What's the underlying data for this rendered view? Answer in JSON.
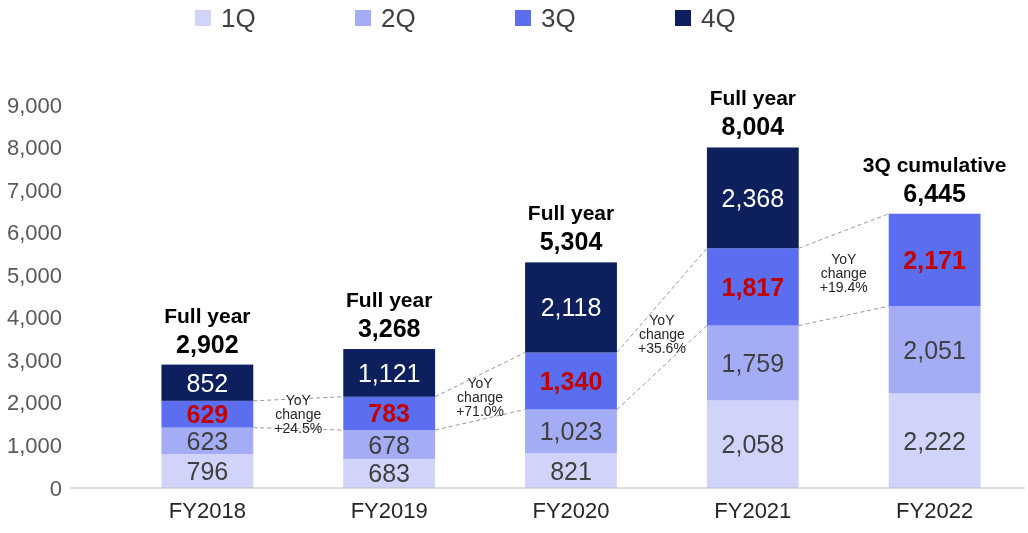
{
  "chart_data": {
    "type": "bar",
    "stacked": true,
    "categories": [
      "FY2018",
      "FY2019",
      "FY2020",
      "FY2021",
      "FY2022"
    ],
    "series": [
      {
        "name": "1Q",
        "color": "#d0d4fa",
        "values": [
          796,
          683,
          821,
          2058,
          2222
        ],
        "value_labels": [
          "796",
          "683",
          "821",
          "2,058",
          "2,222"
        ]
      },
      {
        "name": "2Q",
        "color": "#a3acf5",
        "values": [
          623,
          678,
          1023,
          1759,
          2051
        ],
        "value_labels": [
          "623",
          "678",
          "1,023",
          "1,759",
          "2,051"
        ]
      },
      {
        "name": "3Q",
        "color": "#5c6ef0",
        "values": [
          629,
          783,
          1340,
          1817,
          2171
        ],
        "value_labels": [
          "629",
          "783",
          "1,340",
          "1,817",
          "2,171"
        ]
      },
      {
        "name": "4Q",
        "color": "#0d1f5c",
        "values": [
          852,
          1121,
          2118,
          2368,
          null
        ],
        "value_labels": [
          "852",
          "1,121",
          "2,118",
          "2,368",
          null
        ]
      }
    ],
    "ylim": [
      0,
      9000
    ],
    "yticks": [
      {
        "value": 0,
        "label": "0"
      },
      {
        "value": 1000,
        "label": "1,000"
      },
      {
        "value": 2000,
        "label": "2,000"
      },
      {
        "value": 3000,
        "label": "3,000"
      },
      {
        "value": 4000,
        "label": "4,000"
      },
      {
        "value": 5000,
        "label": "5,000"
      },
      {
        "value": 6000,
        "label": "6,000"
      },
      {
        "value": 7000,
        "label": "7,000"
      },
      {
        "value": 8000,
        "label": "8,000"
      },
      {
        "value": 9000,
        "label": "9,000"
      }
    ],
    "totals": [
      "Full year\n2,902",
      "Full year\n3,268",
      "Full year\n5,304",
      "Full year\n8,004",
      "3Q cumulative\n6,445"
    ],
    "annotations": [
      "YoY\nchange\n+24.5%",
      "YoY\nchange\n+71.0%",
      "YoY\nchange\n+35.6%",
      "YoY\nchange\n+19.4%"
    ],
    "legend": "top",
    "grid": false
  }
}
